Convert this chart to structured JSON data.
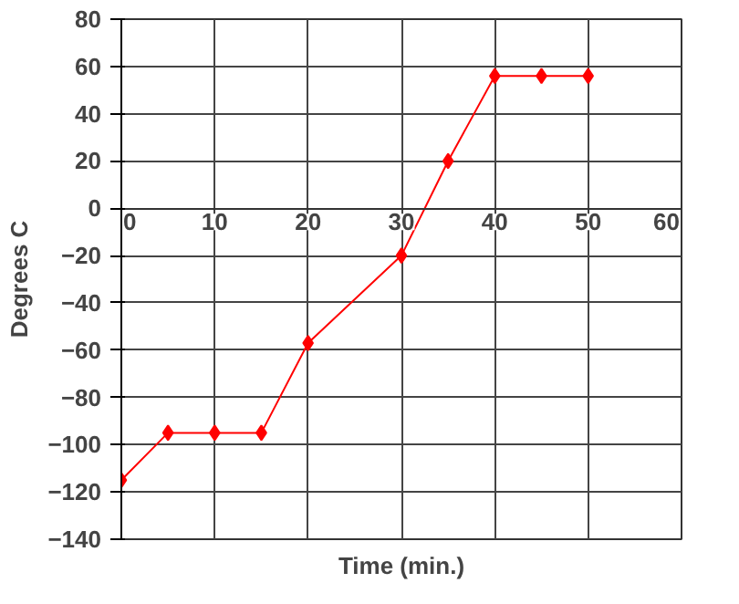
{
  "chart_data": {
    "type": "line",
    "xlabel": "Time (min.)",
    "ylabel": "Degrees C",
    "x": [
      0,
      5,
      10,
      15,
      20,
      30,
      35,
      40,
      45,
      50
    ],
    "series": [
      {
        "color": "#ff0000",
        "values": [
          -115,
          -95,
          -95,
          -95,
          -57,
          -20,
          20,
          56,
          56,
          56
        ]
      }
    ],
    "xlim": [
      0,
      60
    ],
    "xticks": [
      0,
      10,
      20,
      30,
      40,
      50,
      60
    ],
    "ylim": [
      -140,
      80
    ],
    "yticks": [
      -140,
      -120,
      -100,
      -80,
      -60,
      -40,
      -20,
      0,
      20,
      40,
      60,
      80
    ],
    "grid": true,
    "marker": "diamond",
    "line_style": "solid"
  }
}
